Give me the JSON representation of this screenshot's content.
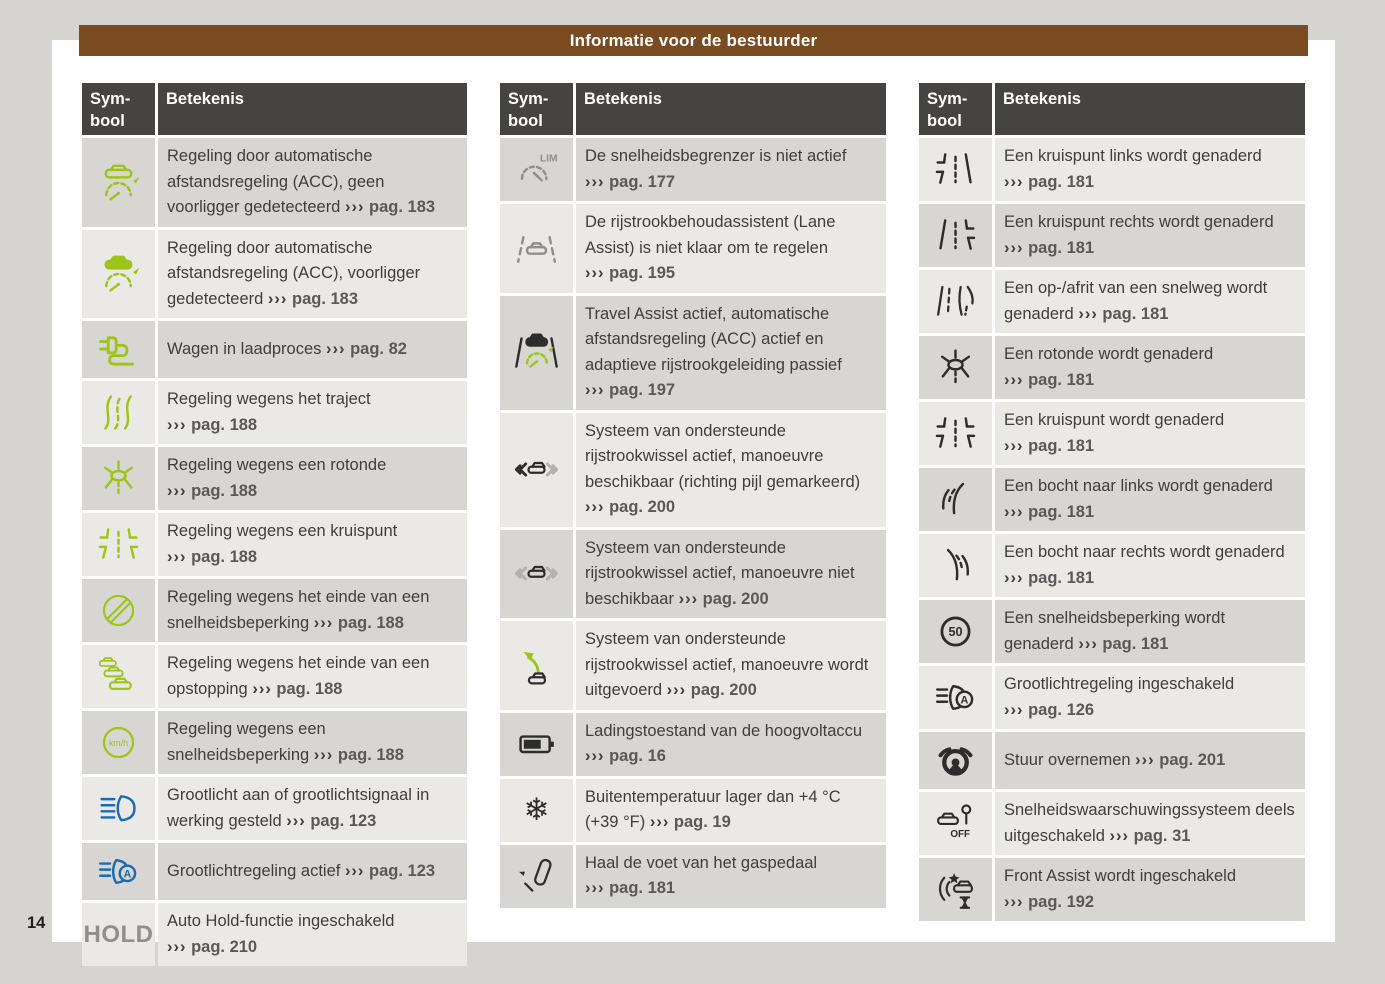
{
  "page": {
    "title": "Informatie voor de bestuurder",
    "page_number": "14"
  },
  "colors": {
    "accent_brown": "#7a4a21",
    "table_header_bg": "#454443",
    "row_dark": "#d8d6d3",
    "row_light": "#ebe9e6",
    "canvas_gray": "#d5d4d1",
    "icon_green": "#9dc41a",
    "icon_blue": "#1c6ab4",
    "icon_dark": "#2d2d2d",
    "icon_gray": "#8f8f8f",
    "body_text": "#3e3e3e",
    "page_ref_text": "#595959"
  },
  "table_header": {
    "symbol_label": "Sym-\nbool",
    "meaning_label": "Betekenis"
  },
  "reference_arrow": "›››",
  "reference_prefix": "pag.",
  "tables": [
    {
      "start_shade": "dark",
      "rows": [
        {
          "icon": "acc-no-vehicle",
          "color": "green",
          "text": "Regeling door automatische afstandsregeling (ACC), geen voorligger gedetecteerd",
          "page": "183"
        },
        {
          "icon": "acc-vehicle",
          "color": "green",
          "text": "Regeling door automatische afstandsregeling (ACC), voorligger gedetecteerd",
          "page": "183"
        },
        {
          "icon": "charging-plug",
          "color": "green",
          "text": "Wagen in laadproces",
          "page": "82"
        },
        {
          "icon": "winding-road",
          "color": "green",
          "text": "Regeling wegens het traject",
          "page": "188"
        },
        {
          "icon": "roundabout",
          "color": "green",
          "text": "Regeling wegens een rotonde",
          "page": "188"
        },
        {
          "icon": "crossroads",
          "color": "green",
          "text": "Regeling wegens een kruispunt",
          "page": "188"
        },
        {
          "icon": "end-of-restriction",
          "color": "green",
          "text": "Regeling wegens het einde van een snelheidsbeperking",
          "page": "188"
        },
        {
          "icon": "traffic-jam",
          "color": "green",
          "text": "Regeling wegens het einde van een opstopping",
          "page": "188"
        },
        {
          "icon": "speed-limit-kmh",
          "color": "green",
          "icon_label": "km/h",
          "text": "Regeling wegens een snelheidsbeperking",
          "page": "188"
        },
        {
          "icon": "high-beam",
          "color": "blue",
          "text": "Grootlicht aan of grootlichtsignaal in werking gesteld",
          "page": "123"
        },
        {
          "icon": "high-beam-auto",
          "color": "blue",
          "icon_label": "A",
          "text": "Grootlichtregeling actief",
          "page": "123"
        },
        {
          "icon": "hold-text",
          "color": "gray",
          "icon_label": "HOLD",
          "text": "Auto Hold-functie ingeschakeld",
          "page": "210"
        }
      ]
    },
    {
      "start_shade": "dark",
      "rows": [
        {
          "icon": "speed-limiter-off",
          "color": "gray",
          "icon_label": "LIM",
          "text": "De snelheidsbegrenzer is niet actief",
          "page": "177"
        },
        {
          "icon": "lane-assist-not-ready",
          "color": "gray",
          "text": "De rijstrookbehoudassistent (Lane Assist) is niet klaar om te regelen",
          "page": "195"
        },
        {
          "icon": "travel-assist",
          "color": "dark",
          "text": "Travel Assist actief, automatische afstandsregeling (ACC) actief en adaptieve rijstrookgeleiding passief",
          "page": "197"
        },
        {
          "icon": "lane-change-available",
          "color": "dark",
          "text": "Systeem van ondersteunde rijstrookwissel actief, manoeuvre beschikbaar (richting pijl gemarkeerd)",
          "page": "200"
        },
        {
          "icon": "lane-change-unavailable",
          "color": "dark",
          "text": "Systeem van ondersteunde rijstrookwissel actief, manoeuvre niet beschikbaar",
          "page": "200"
        },
        {
          "icon": "lane-change-executing",
          "color": "dark",
          "text": "Systeem van ondersteunde rijstrookwissel actief, manoeuvre wordt uitgevoerd",
          "page": "200"
        },
        {
          "icon": "battery-charge",
          "color": "dark",
          "text": "Ladingstoestand van de hoogvoltaccu",
          "page": "16"
        },
        {
          "icon": "snowflake",
          "color": "dark",
          "icon_label": "❄",
          "text": "Buitentemperatuur lager dan +4 °C (+39 °F)",
          "page": "19"
        },
        {
          "icon": "foot-off-pedal",
          "color": "dark",
          "text": "Haal de voet van het gaspedaal",
          "page": "181"
        }
      ]
    },
    {
      "start_shade": "light",
      "rows": [
        {
          "icon": "junction-left",
          "color": "dark",
          "text": "Een kruispunt links wordt genaderd",
          "page": "181"
        },
        {
          "icon": "junction-right",
          "color": "dark",
          "text": "Een kruispunt rechts wordt genaderd",
          "page": "181"
        },
        {
          "icon": "highway-ramp",
          "color": "dark",
          "text": "Een op-/afrit van een snelweg wordt genaderd",
          "page": "181"
        },
        {
          "icon": "roundabout",
          "color": "dark",
          "text": "Een rotonde wordt genaderd",
          "page": "181"
        },
        {
          "icon": "crossroads",
          "color": "dark",
          "text": "Een kruispunt wordt genaderd",
          "page": "181"
        },
        {
          "icon": "curve-left",
          "color": "dark",
          "text": "Een bocht naar links wordt genaderd",
          "page": "181"
        },
        {
          "icon": "curve-right",
          "color": "dark",
          "text": "Een bocht naar rechts wordt genaderd",
          "page": "181"
        },
        {
          "icon": "speed-limit-50",
          "color": "dark",
          "icon_label": "50",
          "text": "Een snelheidsbeperking wordt genaderd",
          "page": "181"
        },
        {
          "icon": "high-beam-auto",
          "color": "dark",
          "icon_label": "A",
          "text": "Grootlichtregeling ingeschakeld",
          "page": "126"
        },
        {
          "icon": "steering-wheel-hands",
          "color": "dark",
          "text": "Stuur overnemen",
          "page": "201"
        },
        {
          "icon": "speed-warning-off",
          "color": "dark",
          "icon_label": "OFF",
          "text": "Snelheidswaarschuwingssysteem deels uitgeschakeld",
          "page": "31"
        },
        {
          "icon": "front-assist",
          "color": "dark",
          "text": "Front Assist wordt ingeschakeld",
          "page": "192"
        }
      ]
    }
  ]
}
